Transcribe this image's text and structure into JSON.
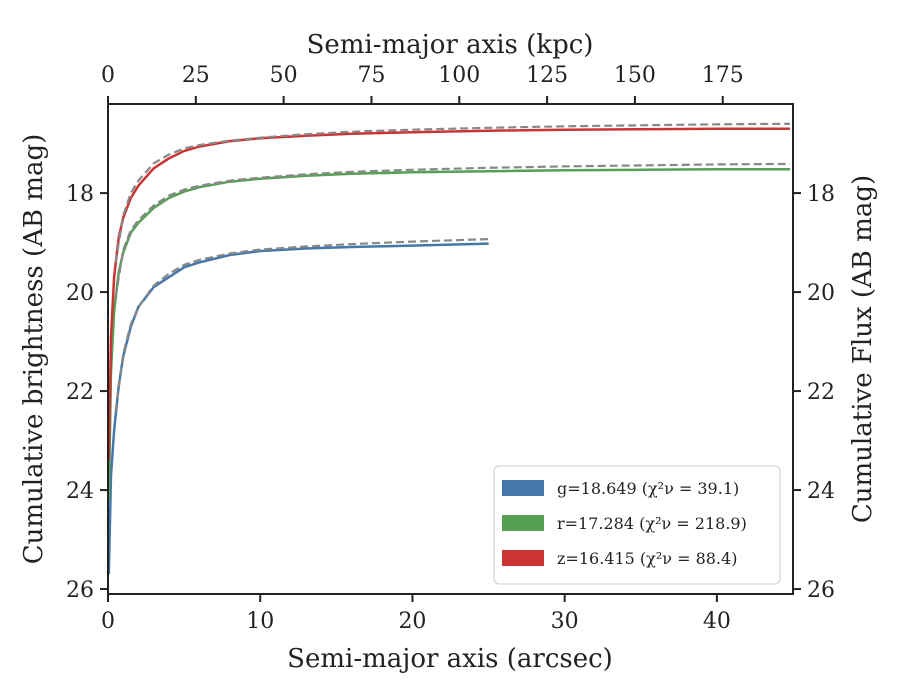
{
  "chart_data": {
    "type": "line",
    "xlabel": "Semi-major axis (arcsec)",
    "xlabel_top": "Semi-major axis (kpc)",
    "ylabel": "Cumulative brightness (AB mag)",
    "ylabel_right": "Cumulative Flux (AB mag)",
    "xlim": [
      0,
      45
    ],
    "xlim_top_kpc": [
      0,
      195
    ],
    "ylim": [
      26.1,
      16.2
    ],
    "y_inverted": true,
    "x_ticks": [
      "0",
      "10",
      "20",
      "30",
      "40"
    ],
    "x_tick_values": [
      0,
      10,
      20,
      30,
      40
    ],
    "top_ticks": [
      "0",
      "25",
      "50",
      "75",
      "100",
      "125",
      "150",
      "175"
    ],
    "top_tick_values": [
      0,
      25,
      50,
      75,
      100,
      125,
      150,
      175
    ],
    "y_ticks": [
      "18",
      "20",
      "22",
      "24",
      "26"
    ],
    "y_tick_values": [
      18,
      20,
      22,
      24,
      26
    ],
    "grid": false,
    "legend_position": "lower-right",
    "series": [
      {
        "name": "g=18.649 (χ²ν = 39.1)",
        "color": "#4477aa",
        "x": [
          0.05,
          0.2,
          0.4,
          0.7,
          1.0,
          1.5,
          2.0,
          3.0,
          4.0,
          5.0,
          6.0,
          8.0,
          10.0,
          13.0,
          16.0,
          20.0,
          25.0
        ],
        "y": [
          25.7,
          23.7,
          22.8,
          21.9,
          21.3,
          20.7,
          20.3,
          19.9,
          19.7,
          19.5,
          19.4,
          19.25,
          19.17,
          19.12,
          19.09,
          19.06,
          19.02
        ]
      },
      {
        "name": "r=17.284 (χ²ν = 218.9)",
        "color": "#55a055",
        "x": [
          0.05,
          0.2,
          0.4,
          0.7,
          1.0,
          1.5,
          2.0,
          3.0,
          4.0,
          5.0,
          6.0,
          8.0,
          10.0,
          13.0,
          16.0,
          20.0,
          25.0,
          30.0,
          35.0,
          40.0,
          44.8
        ],
        "y": [
          24.2,
          21.6,
          20.4,
          19.6,
          19.2,
          18.8,
          18.6,
          18.3,
          18.1,
          17.97,
          17.88,
          17.77,
          17.71,
          17.65,
          17.61,
          17.58,
          17.56,
          17.54,
          17.53,
          17.52,
          17.52
        ]
      },
      {
        "name": "z=16.415 (χ²ν = 88.4)",
        "color": "#cc3333",
        "x": [
          0.05,
          0.2,
          0.4,
          0.7,
          1.0,
          1.5,
          2.0,
          3.0,
          4.0,
          5.0,
          6.0,
          8.0,
          10.0,
          13.0,
          16.0,
          20.0,
          25.0,
          30.0,
          35.0,
          40.0,
          44.8
        ],
        "y": [
          23.4,
          20.9,
          19.7,
          18.9,
          18.5,
          18.1,
          17.85,
          17.5,
          17.3,
          17.15,
          17.06,
          16.95,
          16.89,
          16.84,
          16.8,
          16.77,
          16.74,
          16.72,
          16.71,
          16.7,
          16.7
        ]
      }
    ],
    "model_fits": [
      {
        "color": "#888888",
        "x": [
          0.5,
          1.0,
          1.5,
          2.0,
          3.0,
          4.0,
          5.0,
          6.0,
          8.0,
          10.0,
          13.0,
          16.0,
          20.0,
          25.0
        ],
        "y": [
          22.4,
          21.25,
          20.65,
          20.3,
          19.87,
          19.63,
          19.45,
          19.35,
          19.22,
          19.14,
          19.08,
          19.03,
          18.98,
          18.93
        ]
      },
      {
        "color": "#888888",
        "x": [
          0.5,
          1.0,
          1.5,
          2.0,
          3.0,
          4.0,
          5.0,
          6.0,
          8.0,
          10.0,
          13.0,
          16.0,
          20.0,
          25.0,
          30.0,
          35.0,
          40.0,
          44.8
        ],
        "y": [
          20.1,
          19.15,
          18.75,
          18.55,
          18.25,
          18.05,
          17.93,
          17.85,
          17.75,
          17.69,
          17.62,
          17.57,
          17.53,
          17.49,
          17.46,
          17.44,
          17.42,
          17.41
        ]
      },
      {
        "color": "#888888",
        "x": [
          0.5,
          1.0,
          1.5,
          2.0,
          3.0,
          4.0,
          5.0,
          6.0,
          8.0,
          10.0,
          13.0,
          16.0,
          20.0,
          25.0,
          30.0,
          35.0,
          40.0,
          44.8
        ],
        "y": [
          19.4,
          18.45,
          18.0,
          17.75,
          17.4,
          17.22,
          17.1,
          17.03,
          16.94,
          16.88,
          16.81,
          16.76,
          16.72,
          16.68,
          16.65,
          16.63,
          16.61,
          16.6
        ]
      }
    ]
  }
}
